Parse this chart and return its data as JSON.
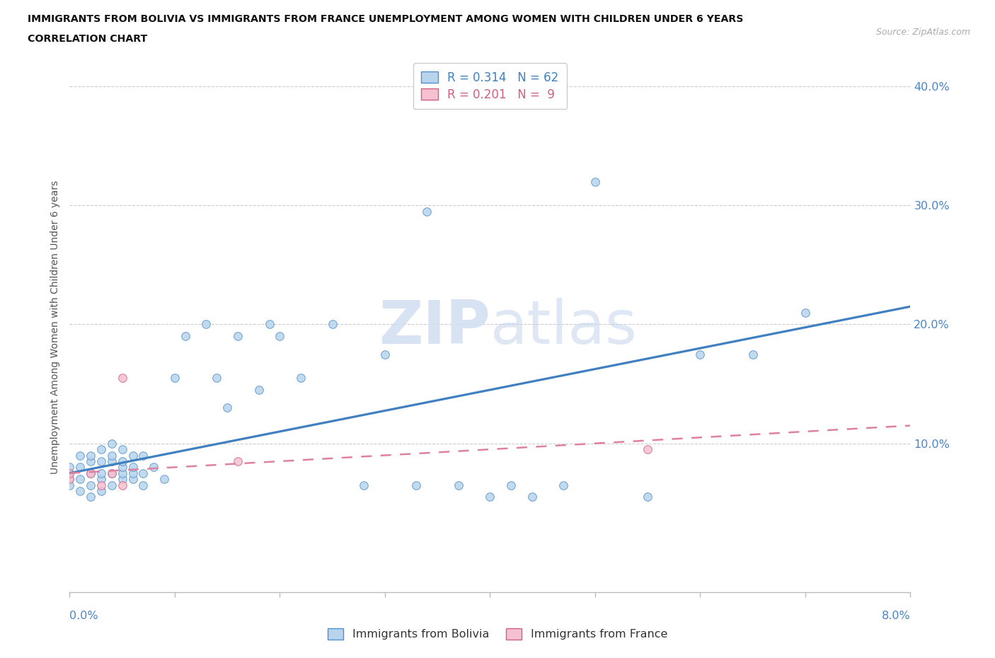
{
  "title_line1": "IMMIGRANTS FROM BOLIVIA VS IMMIGRANTS FROM FRANCE UNEMPLOYMENT AMONG WOMEN WITH CHILDREN UNDER 6 YEARS",
  "title_line2": "CORRELATION CHART",
  "source": "Source: ZipAtlas.com",
  "ylabel": "Unemployment Among Women with Children Under 6 years",
  "color_bolivia": "#b8d4ec",
  "color_bolivia_edge": "#5090cc",
  "color_france": "#f5c0d0",
  "color_france_edge": "#d06080",
  "line_color_bolivia": "#4080c0",
  "line_color_france": "#e080a0",
  "axis_color": "#4a85c8",
  "xmin": 0.0,
  "xmax": 0.08,
  "ymin": -0.025,
  "ymax": 0.42,
  "bolivia_x": [
    0.0,
    0.0,
    0.0,
    0.0,
    0.001,
    0.001,
    0.001,
    0.001,
    0.002,
    0.002,
    0.002,
    0.002,
    0.002,
    0.003,
    0.003,
    0.003,
    0.003,
    0.003,
    0.004,
    0.004,
    0.004,
    0.004,
    0.004,
    0.005,
    0.005,
    0.005,
    0.005,
    0.005,
    0.006,
    0.006,
    0.006,
    0.006,
    0.007,
    0.007,
    0.007,
    0.008,
    0.009,
    0.01,
    0.011,
    0.013,
    0.014,
    0.015,
    0.016,
    0.018,
    0.019,
    0.02,
    0.022,
    0.025,
    0.028,
    0.03,
    0.033,
    0.034,
    0.037,
    0.04,
    0.042,
    0.044,
    0.047,
    0.05,
    0.055,
    0.06,
    0.065,
    0.07
  ],
  "bolivia_y": [
    0.07,
    0.075,
    0.08,
    0.065,
    0.06,
    0.07,
    0.08,
    0.09,
    0.055,
    0.065,
    0.075,
    0.085,
    0.09,
    0.06,
    0.07,
    0.075,
    0.085,
    0.095,
    0.065,
    0.075,
    0.085,
    0.09,
    0.1,
    0.07,
    0.075,
    0.08,
    0.085,
    0.095,
    0.07,
    0.075,
    0.08,
    0.09,
    0.065,
    0.075,
    0.09,
    0.08,
    0.07,
    0.155,
    0.19,
    0.2,
    0.155,
    0.13,
    0.19,
    0.145,
    0.2,
    0.19,
    0.155,
    0.2,
    0.065,
    0.175,
    0.065,
    0.295,
    0.065,
    0.055,
    0.065,
    0.055,
    0.065,
    0.32,
    0.055,
    0.175,
    0.175,
    0.21
  ],
  "france_x": [
    0.0,
    0.0,
    0.002,
    0.003,
    0.004,
    0.005,
    0.005,
    0.016,
    0.055
  ],
  "france_y": [
    0.07,
    0.075,
    0.075,
    0.065,
    0.075,
    0.065,
    0.155,
    0.085,
    0.095
  ],
  "line_bolivia_x0": 0.0,
  "line_bolivia_y0": 0.075,
  "line_bolivia_x1": 0.08,
  "line_bolivia_y1": 0.215,
  "line_france_x0": 0.0,
  "line_france_y0": 0.075,
  "line_france_x1": 0.08,
  "line_france_y1": 0.115
}
